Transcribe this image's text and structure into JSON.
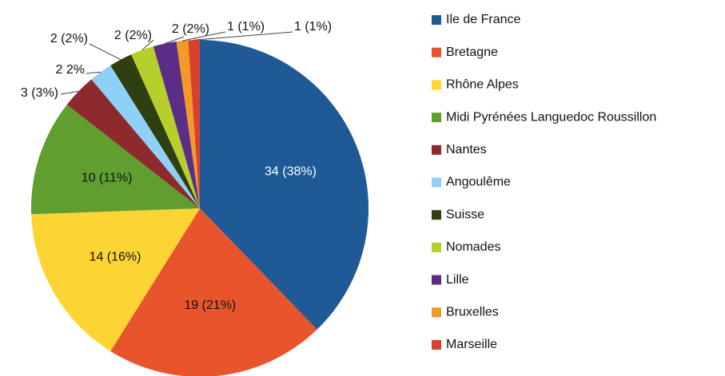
{
  "chart_data": {
    "type": "pie",
    "categories": [
      "Ile de France",
      "Bretagne",
      "Rhône Alpes",
      "Midi Pyrénées Languedoc Roussillon",
      "Nantes",
      "Angoulême",
      "Suisse",
      "Nomades",
      "Lille",
      "Bruxelles",
      "Marseille"
    ],
    "values": [
      34,
      19,
      14,
      10,
      3,
      2,
      2,
      2,
      2,
      1,
      1
    ],
    "value_labels": [
      "34 (38%)",
      "19 (21%)",
      "14 (16%)",
      "10 (11%)",
      "3 (3%)",
      "2 2%",
      "2 (2%)",
      "2 (2%)",
      "2 (2%)",
      "1 (1%)",
      "1 (1%)"
    ],
    "colors": [
      "#1f5a96",
      "#e8552d",
      "#fcd535",
      "#5f9e2f",
      "#8c2a2e",
      "#8fd0f7",
      "#2f3f12",
      "#b6cf2b",
      "#5b2d86",
      "#f39a26",
      "#d9412f"
    ],
    "legend": "right"
  }
}
